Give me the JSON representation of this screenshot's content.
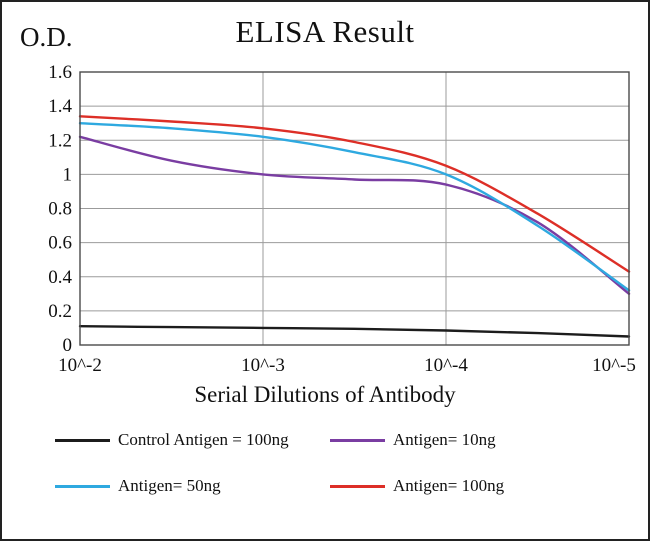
{
  "title": "ELISA Result",
  "y_axis_label": "O.D.",
  "x_axis_title": "Serial Dilutions  of Antibody",
  "chart_data": {
    "type": "line",
    "x": [
      2,
      2.5,
      3,
      3.5,
      4,
      4.5,
      5
    ],
    "xlim": [
      2,
      5
    ],
    "ylim": [
      0,
      1.6
    ],
    "xticks": [
      2,
      3,
      4,
      5
    ],
    "xticklabels": [
      "10^-2",
      "10^-3",
      "10^-4",
      "10^-5"
    ],
    "yticks": [
      0,
      0.2,
      0.4,
      0.6,
      0.8,
      1,
      1.2,
      1.4,
      1.6
    ],
    "yticklabels": [
      "0",
      "0.2",
      "0.4",
      "0.6",
      "0.8",
      "1",
      "1.2",
      "1.4",
      "1.6"
    ],
    "grid": true,
    "legend_position": "bottom",
    "title": "ELISA Result",
    "xlabel": "Serial Dilutions  of Antibody",
    "ylabel": "O.D.",
    "series": [
      {
        "name": "Control Antigen = 100ng",
        "color": "#1c1c1c",
        "values": [
          0.11,
          0.105,
          0.1,
          0.095,
          0.085,
          0.07,
          0.05
        ]
      },
      {
        "name": "Antigen= 10ng",
        "color": "#7a3da2",
        "values": [
          1.22,
          1.08,
          1.0,
          0.97,
          0.94,
          0.72,
          0.3
        ]
      },
      {
        "name": "Antigen= 50ng",
        "color": "#2ea9e0",
        "values": [
          1.3,
          1.27,
          1.22,
          1.13,
          1.0,
          0.7,
          0.32
        ]
      },
      {
        "name": "Antigen= 100ng",
        "color": "#dd2f27",
        "values": [
          1.34,
          1.31,
          1.27,
          1.19,
          1.05,
          0.77,
          0.43
        ]
      }
    ]
  },
  "legend": {
    "items": [
      {
        "label": "Control Antigen = 100ng",
        "color": "#1c1c1c"
      },
      {
        "label": "Antigen= 10ng",
        "color": "#7a3da2"
      },
      {
        "label": "Antigen= 50ng",
        "color": "#2ea9e0"
      },
      {
        "label": "Antigen= 100ng",
        "color": "#dd2f27"
      }
    ]
  },
  "style": {
    "grid_color": "#9b9b9b",
    "plot_border_color": "#4a4a4a"
  }
}
